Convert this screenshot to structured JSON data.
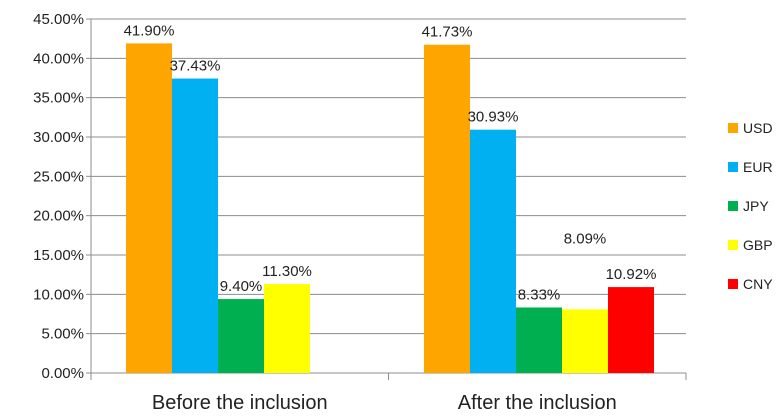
{
  "chart_data": {
    "type": "bar",
    "categories": [
      "Before the inclusion",
      "After the inclusion"
    ],
    "series": [
      {
        "name": "USD",
        "color": "#FFA500",
        "values": [
          41.9,
          41.73
        ]
      },
      {
        "name": "EUR",
        "color": "#00B0F0",
        "values": [
          37.43,
          30.93
        ]
      },
      {
        "name": "JPY",
        "color": "#00B050",
        "values": [
          9.4,
          8.33
        ]
      },
      {
        "name": "GBP",
        "color": "#FFFF00",
        "values": [
          11.3,
          8.09
        ]
      },
      {
        "name": "CNY",
        "color": "#FF0000",
        "values": [
          null,
          10.92
        ]
      }
    ],
    "data_labels": [
      [
        "41.90%",
        "37.43%",
        "9.40%",
        "11.30%",
        ""
      ],
      [
        "41.73%",
        "30.93%",
        "8.33%",
        "8.09%",
        "10.92%"
      ]
    ],
    "ytick_labels": [
      "0.00%",
      "5.00%",
      "10.00%",
      "15.00%",
      "20.00%",
      "25.00%",
      "30.00%",
      "35.00%",
      "40.00%",
      "45.00%"
    ],
    "ylim": [
      0,
      45
    ],
    "title": "",
    "xlabel": "",
    "ylabel": "",
    "grid": true,
    "legend_position": "right"
  }
}
